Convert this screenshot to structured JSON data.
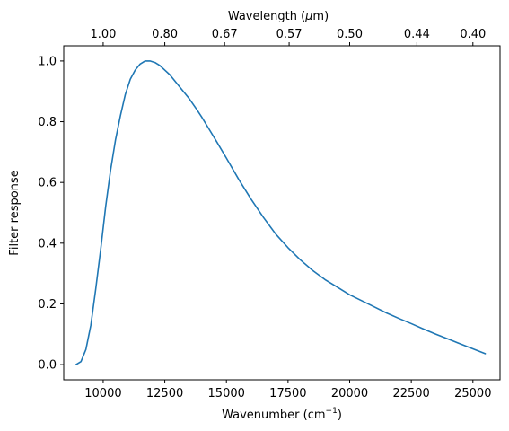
{
  "chart_data": {
    "type": "line",
    "xlabel": "Wavenumber (cm",
    "xlabel_sup": "−1",
    "xlabel_tail": ")",
    "ylabel": "Filter response",
    "top_xlabel": "Wavelength (",
    "top_xlabel_mu": "μ",
    "top_xlabel_tail": "m)",
    "xlim": [
      8400,
      26100
    ],
    "ylim": [
      -0.05,
      1.05
    ],
    "x_ticks": [
      10000,
      12500,
      15000,
      17500,
      20000,
      22500,
      25000
    ],
    "x_tick_labels": [
      "10000",
      "12500",
      "15000",
      "17500",
      "20000",
      "22500",
      "25000"
    ],
    "y_ticks": [
      0.0,
      0.2,
      0.4,
      0.6,
      0.8,
      1.0
    ],
    "y_tick_labels": [
      "0.0",
      "0.2",
      "0.4",
      "0.6",
      "0.8",
      "1.0"
    ],
    "top_ticks_wavelength_um": [
      1.0,
      0.8,
      0.67,
      0.57,
      0.5,
      0.44,
      0.4
    ],
    "top_tick_labels": [
      "1.00",
      "0.80",
      "0.67",
      "0.57",
      "0.50",
      "0.44",
      "0.40"
    ],
    "grid": false,
    "series": [
      {
        "color": "#1f77b4",
        "x": [
          8900,
          9100,
          9300,
          9500,
          9700,
          9900,
          10100,
          10300,
          10500,
          10700,
          10900,
          11100,
          11300,
          11500,
          11700,
          11900,
          12100,
          12300,
          12500,
          12700,
          12900,
          13100,
          13300,
          13500,
          13800,
          14000,
          14300,
          14600,
          15000,
          15500,
          16000,
          16500,
          17000,
          17500,
          18000,
          18500,
          19000,
          19500,
          20000,
          20500,
          21000,
          21500,
          22000,
          22500,
          23000,
          23500,
          24000,
          24500,
          25000,
          25500
        ],
        "y": [
          0.0,
          0.01,
          0.05,
          0.13,
          0.25,
          0.38,
          0.52,
          0.64,
          0.74,
          0.82,
          0.89,
          0.94,
          0.97,
          0.99,
          1.0,
          1.0,
          0.995,
          0.985,
          0.97,
          0.955,
          0.935,
          0.915,
          0.895,
          0.875,
          0.84,
          0.815,
          0.775,
          0.735,
          0.68,
          0.61,
          0.545,
          0.485,
          0.43,
          0.385,
          0.345,
          0.31,
          0.28,
          0.255,
          0.23,
          0.21,
          0.19,
          0.17,
          0.152,
          0.135,
          0.117,
          0.1,
          0.084,
          0.068,
          0.052,
          0.036
        ]
      }
    ]
  }
}
